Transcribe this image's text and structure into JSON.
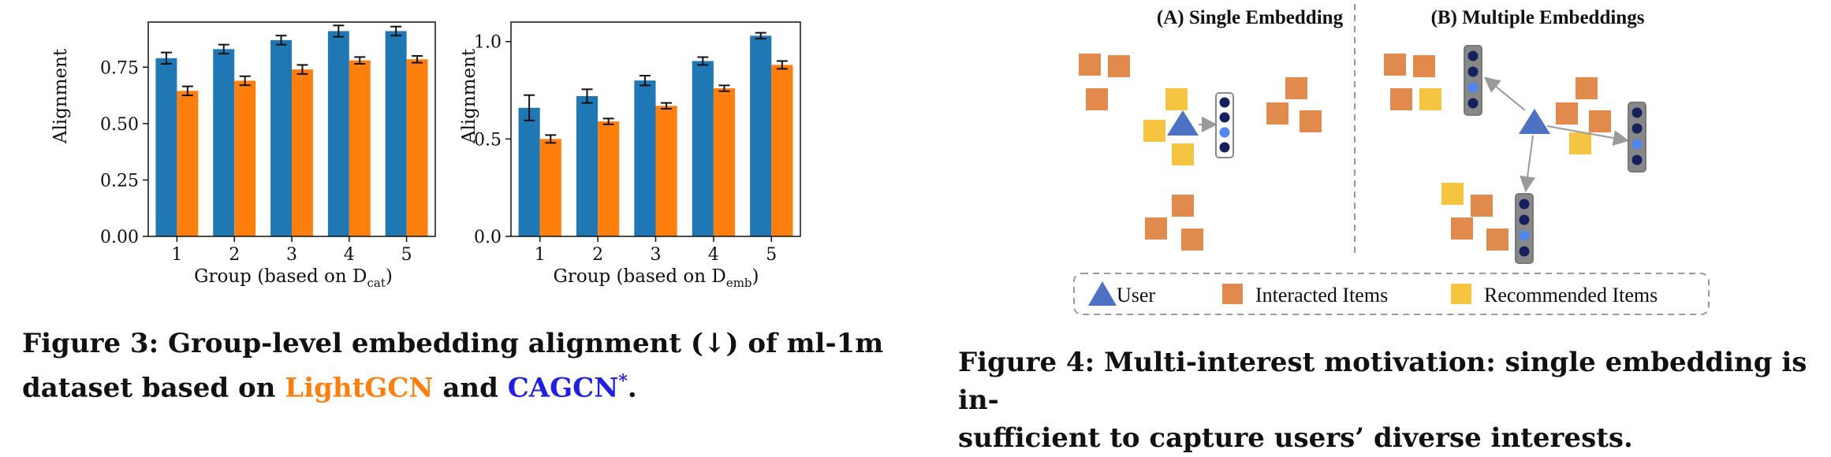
{
  "figure3": {
    "caption_parts": {
      "prefix": "Figure 3: Group-level embedding alignment (↓) of ml-1m",
      "line2_start": "dataset based on ",
      "method1": "LightGCN",
      "and": " and ",
      "method2": "CAGCN",
      "method2_mark": "*",
      "end": "."
    },
    "charts": {
      "left": {
        "ylabel": "Alignment",
        "xlabel_main": "Group (based on D",
        "xlabel_sub": "cat",
        "xlabel_end": ")"
      },
      "right": {
        "ylabel": "Alignment",
        "xlabel_main": "Group (based on D",
        "xlabel_sub": "emb",
        "xlabel_end": ")"
      }
    }
  },
  "chart_data": [
    {
      "type": "bar",
      "categories": [
        "1",
        "2",
        "3",
        "4",
        "5"
      ],
      "ylabel": "Alignment",
      "xlabel": "Group (based on Dcat)",
      "ylim": [
        0,
        0.95
      ],
      "yticks": [
        "0.00",
        "0.25",
        "0.50",
        "0.75"
      ],
      "ytick_values": [
        0,
        0.25,
        0.5,
        0.75
      ],
      "series": [
        {
          "color": "#1f77b4",
          "values": [
            0.79,
            0.83,
            0.87,
            0.91,
            0.91
          ],
          "errors": [
            0.025,
            0.02,
            0.02,
            0.025,
            0.02
          ]
        },
        {
          "color": "#ff7f0e",
          "values": [
            0.645,
            0.69,
            0.74,
            0.78,
            0.785
          ],
          "errors": [
            0.02,
            0.02,
            0.02,
            0.015,
            0.015
          ]
        }
      ]
    },
    {
      "type": "bar",
      "categories": [
        "1",
        "2",
        "3",
        "4",
        "5"
      ],
      "ylabel": "Alignment",
      "xlabel": "Group (based on Demb)",
      "ylim": [
        0,
        1.1
      ],
      "yticks": [
        "0.0",
        "0.5",
        "1.0"
      ],
      "ytick_values": [
        0,
        0.5,
        1.0
      ],
      "series": [
        {
          "color": "#1f77b4",
          "values": [
            0.66,
            0.72,
            0.8,
            0.9,
            1.03
          ],
          "errors": [
            0.065,
            0.035,
            0.025,
            0.02,
            0.015
          ]
        },
        {
          "color": "#ff7f0e",
          "values": [
            0.5,
            0.59,
            0.67,
            0.76,
            0.88
          ],
          "errors": [
            0.02,
            0.015,
            0.015,
            0.015,
            0.02
          ]
        }
      ]
    }
  ],
  "figure4": {
    "title_a": "(A) Single Embedding",
    "title_b": "(B) Multiple Embeddings",
    "legend": {
      "user": "User",
      "interacted": "Interacted Items",
      "recommended": "Recommended Items"
    },
    "colors": {
      "interacted": "#e08a4e",
      "recommended": "#f5c542",
      "user": "#4d72c4",
      "dot_dark": "#15205f",
      "dot_light": "#4f86f0"
    },
    "caption_line1": "Figure 4: Multi-interest motivation: single embedding is in-",
    "caption_line2": "sufficient to capture users’ diverse interests."
  }
}
